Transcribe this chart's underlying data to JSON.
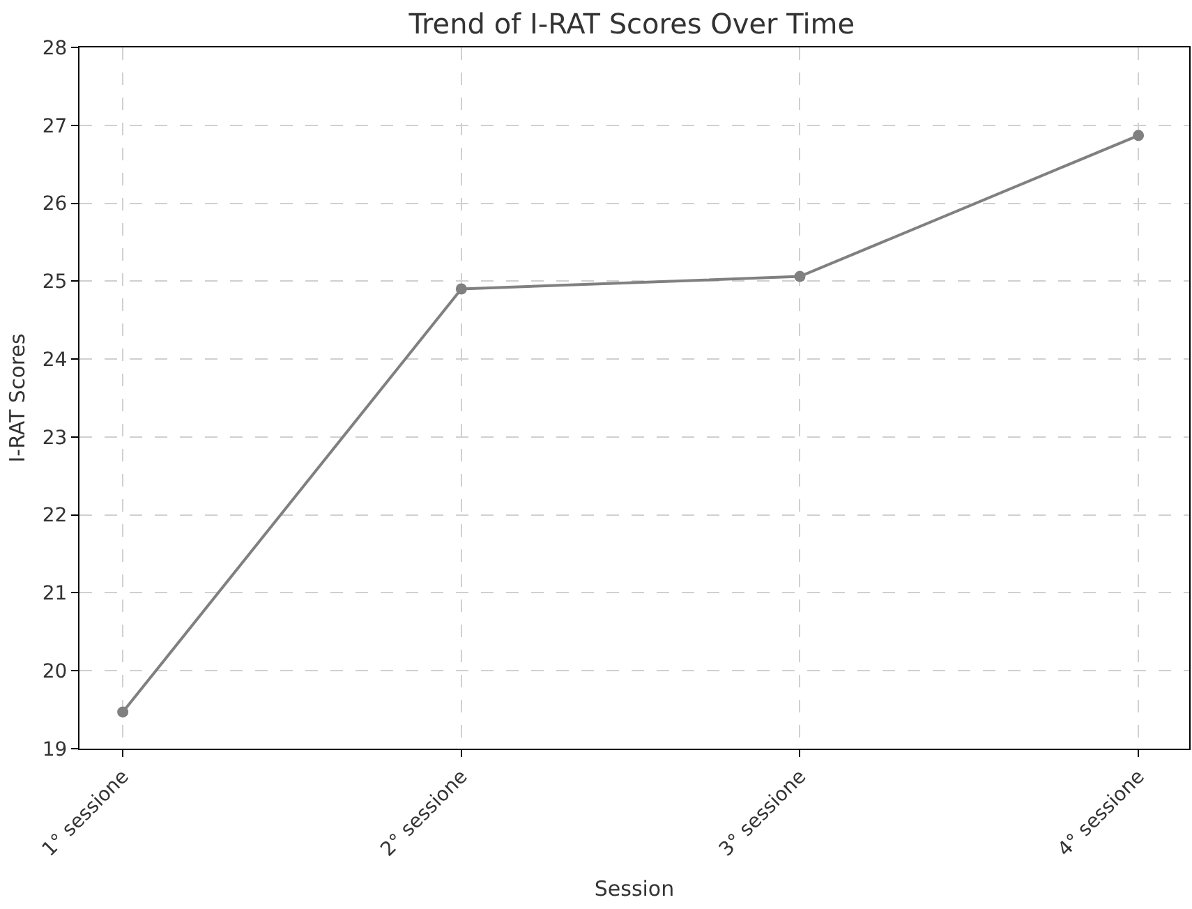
{
  "chart_data": {
    "type": "line",
    "title": "Trend of I-RAT Scores Over Time",
    "xlabel": "Session",
    "ylabel": "I-RAT Scores",
    "categories": [
      "1° sessione",
      "2° sessione",
      "3° sessione",
      "4° sessione"
    ],
    "series": [
      {
        "color": "#808080",
        "values": [
          19.47,
          24.9,
          25.06,
          26.87
        ]
      }
    ],
    "ylim": [
      19,
      28
    ],
    "yticks": [
      19,
      20,
      21,
      22,
      23,
      24,
      25,
      26,
      27,
      28
    ],
    "grid": true,
    "marker": "circle",
    "line_style": "solid"
  }
}
